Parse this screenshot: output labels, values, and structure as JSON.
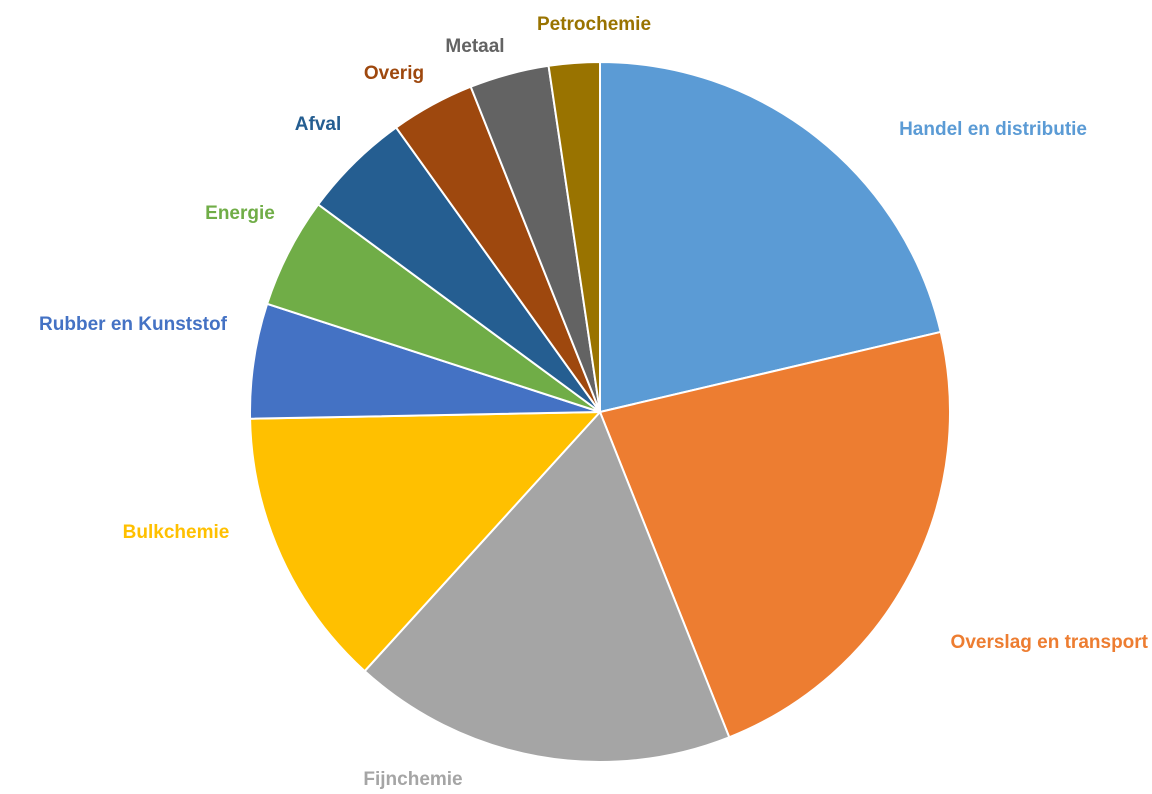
{
  "chart_data": {
    "type": "pie",
    "start_angle_deg": 0,
    "direction": "clockwise",
    "slices": [
      {
        "label": "Handel en distributie",
        "value": 20.9,
        "color": "#5B9BD5"
      },
      {
        "label": "Overslag en transport",
        "value": 22.2,
        "color": "#ED7D31"
      },
      {
        "label": "Fijnchemie",
        "value": 17.4,
        "color": "#A5A5A5"
      },
      {
        "label": "Bulkchemie",
        "value": 12.7,
        "color": "#FFC000"
      },
      {
        "label": "Rubber en Kunststof",
        "value": 5.2,
        "color": "#4472C4"
      },
      {
        "label": "Energie",
        "value": 5.0,
        "color": "#70AD47"
      },
      {
        "label": "Afval",
        "value": 4.9,
        "color": "#255E91"
      },
      {
        "label": "Overig",
        "value": 3.8,
        "color": "#9E480E"
      },
      {
        "label": "Metaal",
        "value": 3.6,
        "color": "#636363"
      },
      {
        "label": "Petrochemie",
        "value": 2.3,
        "color": "#997300"
      }
    ]
  }
}
